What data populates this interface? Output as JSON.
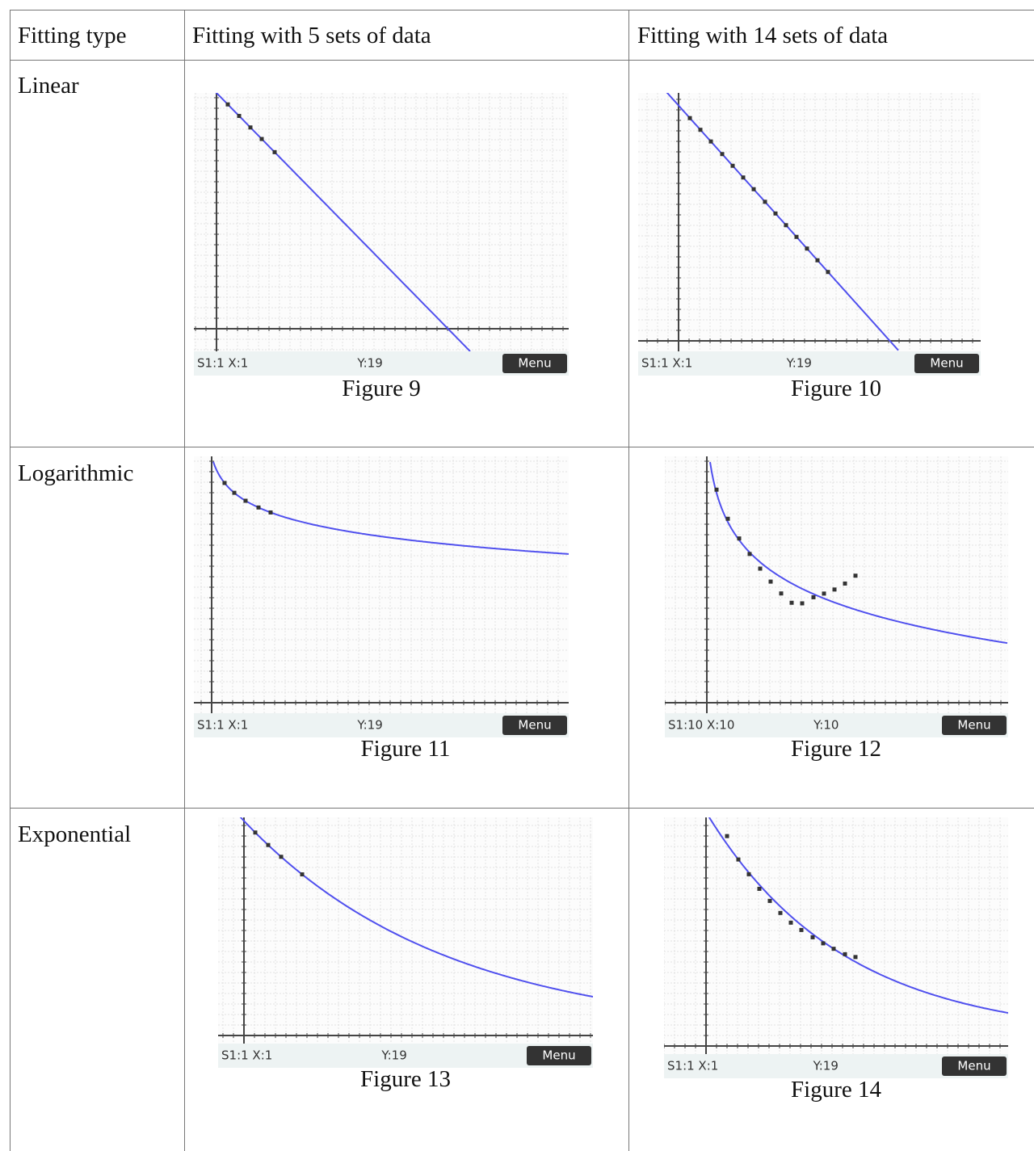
{
  "table": {
    "header": [
      "Fitting type",
      "Fitting with 5 sets of data",
      "Fitting with 14 sets of data"
    ],
    "rows": [
      {
        "label": "Linear",
        "figures": [
          {
            "caption": "Figure 9",
            "status": [
              "S1:1 X:1",
              "Y:19",
              "Menu"
            ]
          },
          {
            "caption": "Figure 10",
            "status": [
              "S1:1 X:1",
              "Y:19",
              "Menu"
            ]
          }
        ]
      },
      {
        "label": "Logarithmic",
        "figures": [
          {
            "caption": "Figure 11",
            "status": [
              "S1:1 X:1",
              "Y:19",
              "Menu"
            ]
          },
          {
            "caption": "Figure 12",
            "status": [
              "S1:10 X:10",
              "Y:10",
              "Menu"
            ]
          }
        ]
      },
      {
        "label": "Exponential",
        "figures": [
          {
            "caption": "Figure 13",
            "status": [
              "S1:1 X:1",
              "Y:19",
              "Menu"
            ]
          },
          {
            "caption": "Figure 14",
            "status": [
              "S1:1 X:1",
              "Y:19",
              "Menu"
            ]
          }
        ]
      }
    ]
  }
}
